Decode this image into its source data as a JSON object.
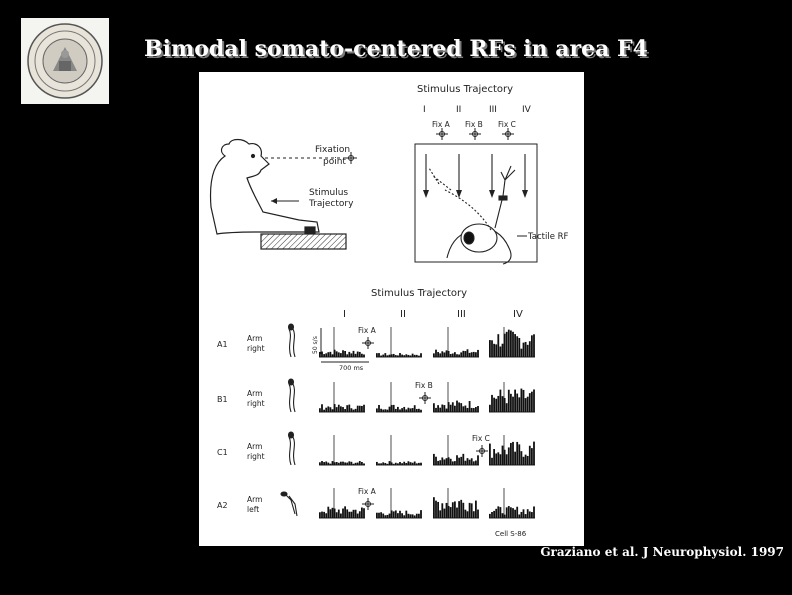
{
  "slide": {
    "title": "Bimodal somato-centered RFs in area F4",
    "citation": "Graziano et al. J Neurophysiol. 1997"
  },
  "logo": {
    "icon": "university-seal-icon"
  },
  "figure": {
    "top_panel": {
      "title": "Stimulus Trajectory",
      "trajectory_labels": [
        "I",
        "II",
        "III",
        "IV"
      ],
      "fixation_labels": [
        "Fix A",
        "Fix B",
        "Fix C"
      ],
      "fixation_point_label": [
        "Fixation",
        "point"
      ],
      "stimulus_label": [
        "Stimulus",
        "Trajectory"
      ],
      "tactile_label": "Tactile RF"
    },
    "bottom_panel": {
      "title": "Stimulus Trajectory",
      "column_labels": [
        "I",
        "II",
        "III",
        "IV"
      ],
      "scale_y": "50 s/s",
      "scale_x": "700 ms",
      "cell_label": "Cell S-86",
      "rows": [
        {
          "id": "A1",
          "arm": "Arm",
          "side": "right",
          "fix": "Fix A",
          "levels": [
            2,
            1,
            2,
            7
          ]
        },
        {
          "id": "B1",
          "arm": "Arm",
          "side": "right",
          "fix": "Fix B",
          "levels": [
            2,
            2,
            3,
            6
          ]
        },
        {
          "id": "C1",
          "arm": "Arm",
          "side": "right",
          "fix": "Fix C",
          "levels": [
            1,
            1,
            3,
            6
          ]
        },
        {
          "id": "A2",
          "arm": "Arm",
          "side": "left",
          "fix": "Fix A",
          "levels": [
            3,
            2,
            6,
            3
          ]
        }
      ]
    }
  }
}
